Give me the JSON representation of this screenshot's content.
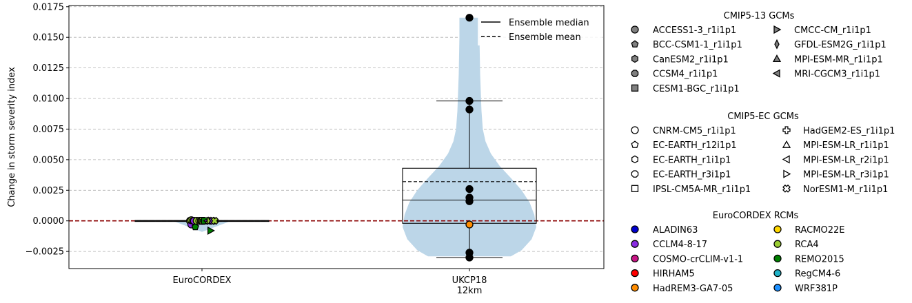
{
  "chart_data": {
    "type": "violin",
    "ylabel": "Change in storm severity index",
    "ylim": [
      -0.0039,
      0.0176
    ],
    "yticks": [
      -0.0025,
      0.0,
      0.0025,
      0.005,
      0.0075,
      0.01,
      0.0125,
      0.015,
      0.0175
    ],
    "ytick_labels": [
      "−0.0025",
      "0.0000",
      "0.0025",
      "0.0050",
      "0.0075",
      "0.0100",
      "0.0125",
      "0.0150",
      "0.0175"
    ],
    "grid": "y-dashed",
    "zero_line_color": "#8b0000",
    "violin_color": "#bcd6e8",
    "categories": [
      "EuroCORDEX",
      "UKCP18\n12km"
    ],
    "groups": [
      {
        "name": "EuroCORDEX",
        "box": {
          "q1": -5e-05,
          "median": 0.0,
          "q3": 3e-05,
          "whisker_low": -7e-05,
          "whisker_high": 5e-05
        },
        "mean": 0.0,
        "violin_half_width": 0.5,
        "points": [
          {
            "dx": -0.09,
            "y": 0.0,
            "marker": "circle",
            "color": "#9acd32"
          },
          {
            "dx": -0.08,
            "y": -0.0003,
            "marker": "circle",
            "color": "#8a2be2"
          },
          {
            "dx": -0.08,
            "y": 5e-05,
            "marker": "circle",
            "color": "#9acd32"
          },
          {
            "dx": -0.07,
            "y": 0.0,
            "marker": "hexagon",
            "color": "#9acd32"
          },
          {
            "dx": -0.06,
            "y": 0.0,
            "marker": "circle",
            "color": "#8a2be2"
          },
          {
            "dx": -0.05,
            "y": -0.0005,
            "marker": "pentagon",
            "color": "#008000"
          },
          {
            "dx": -0.04,
            "y": 0.0,
            "marker": "circle",
            "color": "#9acd32"
          },
          {
            "dx": -0.02,
            "y": 0.0,
            "marker": "circle",
            "color": "#9acd32"
          },
          {
            "dx": -0.01,
            "y": 0.0,
            "marker": "hexagon",
            "color": "#9acd32"
          },
          {
            "dx": 0.0,
            "y": 0.0,
            "marker": "circle",
            "color": "#9acd32"
          },
          {
            "dx": 0.01,
            "y": 0.0,
            "marker": "cross",
            "color": "#008000"
          },
          {
            "dx": 0.02,
            "y": 0.0,
            "marker": "square",
            "color": "#008000"
          },
          {
            "dx": 0.04,
            "y": 0.0,
            "marker": "triangle-left",
            "color": "#8a2be2"
          },
          {
            "dx": 0.05,
            "y": 0.0,
            "marker": "triangle-up",
            "color": "#9acd32"
          },
          {
            "dx": 0.06,
            "y": 0.0,
            "marker": "triangle-right",
            "color": "#9acd32"
          },
          {
            "dx": 0.065,
            "y": -0.0008,
            "marker": "triangle-right",
            "color": "#008000"
          },
          {
            "dx": 0.08,
            "y": 0.0,
            "marker": "xcross",
            "color": "#8a2be2"
          },
          {
            "dx": 0.095,
            "y": 0.0,
            "marker": "xcross",
            "color": "#9acd32"
          }
        ]
      },
      {
        "name": "UKCP18 12km",
        "box": {
          "q1": -0.0002,
          "median": 0.0017,
          "q3": 0.0043,
          "whisker_low": -0.003,
          "whisker_high": 0.0098
        },
        "mean": 0.0032,
        "violin_half_width": 0.5,
        "points": [
          {
            "dx": 0,
            "y": 0.0166,
            "marker": "circle",
            "color": "#000000"
          },
          {
            "dx": 0,
            "y": 0.0098,
            "marker": "circle",
            "color": "#000000"
          },
          {
            "dx": 0,
            "y": 0.0091,
            "marker": "circle",
            "color": "#000000"
          },
          {
            "dx": 0,
            "y": 0.0026,
            "marker": "circle",
            "color": "#000000"
          },
          {
            "dx": 0,
            "y": 0.0019,
            "marker": "circle",
            "color": "#000000"
          },
          {
            "dx": 0,
            "y": 0.0016,
            "marker": "circle",
            "color": "#000000"
          },
          {
            "dx": 0,
            "y": -0.0003,
            "marker": "circle",
            "color": "#ff8c00"
          },
          {
            "dx": 0,
            "y": -0.0026,
            "marker": "circle",
            "color": "#000000"
          },
          {
            "dx": 0,
            "y": -0.003,
            "marker": "circle",
            "color": "#000000"
          }
        ]
      }
    ],
    "inner_legend": [
      {
        "label": "Ensemble median",
        "style": "solid"
      },
      {
        "label": "Ensemble mean",
        "style": "dashed"
      }
    ],
    "legends": [
      {
        "title": "CMIP5-13 GCMs",
        "fill": "#808080",
        "columns": [
          [
            {
              "label": "ACCESS1-3_r1i1p1",
              "marker": "circle"
            },
            {
              "label": "BCC-CSM1-1_r1i1p1",
              "marker": "pentagon"
            },
            {
              "label": "CanESM2_r1i1p1",
              "marker": "hexagon"
            },
            {
              "label": "CCSM4_r1i1p1",
              "marker": "octagon"
            },
            {
              "label": "CESM1-BGC_r1i1p1",
              "marker": "square"
            }
          ],
          [
            {
              "label": "CMCC-CM_r1i1p1",
              "marker": "triangle-right"
            },
            {
              "label": "GFDL-ESM2G_r1i1p1",
              "marker": "thin-diamond"
            },
            {
              "label": "MPI-ESM-MR_r1i1p1",
              "marker": "triangle-up"
            },
            {
              "label": "MRI-CGCM3_r1i1p1",
              "marker": "triangle-left"
            }
          ]
        ]
      },
      {
        "title": "CMIP5-EC GCMs",
        "fill": "#ffffff",
        "columns": [
          [
            {
              "label": "CNRM-CM5_r1i1p1",
              "marker": "circle"
            },
            {
              "label": "EC-EARTH_r12i1p1",
              "marker": "pentagon"
            },
            {
              "label": "EC-EARTH_r1i1p1",
              "marker": "hexagon"
            },
            {
              "label": "EC-EARTH_r3i1p1",
              "marker": "octagon"
            },
            {
              "label": "IPSL-CM5A-MR_r1i1p1",
              "marker": "square"
            }
          ],
          [
            {
              "label": "HadGEM2-ES_r1i1p1",
              "marker": "cross"
            },
            {
              "label": "MPI-ESM-LR_r1i1p1",
              "marker": "triangle-up"
            },
            {
              "label": "MPI-ESM-LR_r2i1p1",
              "marker": "triangle-left"
            },
            {
              "label": "MPI-ESM-LR_r3i1p1",
              "marker": "triangle-right"
            },
            {
              "label": "NorESM1-M_r1i1p1",
              "marker": "xcross"
            }
          ]
        ]
      },
      {
        "title": "EuroCORDEX RCMs",
        "fill": null,
        "columns": [
          [
            {
              "label": "ALADIN63",
              "marker": "circle",
              "color": "#0000cd"
            },
            {
              "label": "CCLM4-8-17",
              "marker": "circle",
              "color": "#8a2be2"
            },
            {
              "label": "COSMO-crCLIM-v1-1",
              "marker": "circle",
              "color": "#c71585"
            },
            {
              "label": "HIRHAM5",
              "marker": "circle",
              "color": "#ff0000"
            },
            {
              "label": "HadREM3-GA7-05",
              "marker": "circle",
              "color": "#ff8c00"
            }
          ],
          [
            {
              "label": "RACMO22E",
              "marker": "circle",
              "color": "#ffd700"
            },
            {
              "label": "RCA4",
              "marker": "circle",
              "color": "#9acd32"
            },
            {
              "label": "REMO2015",
              "marker": "circle",
              "color": "#008000"
            },
            {
              "label": "RegCM4-6",
              "marker": "circle",
              "color": "#20b2c8"
            },
            {
              "label": "WRF381P",
              "marker": "circle",
              "color": "#1e90ff"
            }
          ]
        ]
      }
    ]
  }
}
